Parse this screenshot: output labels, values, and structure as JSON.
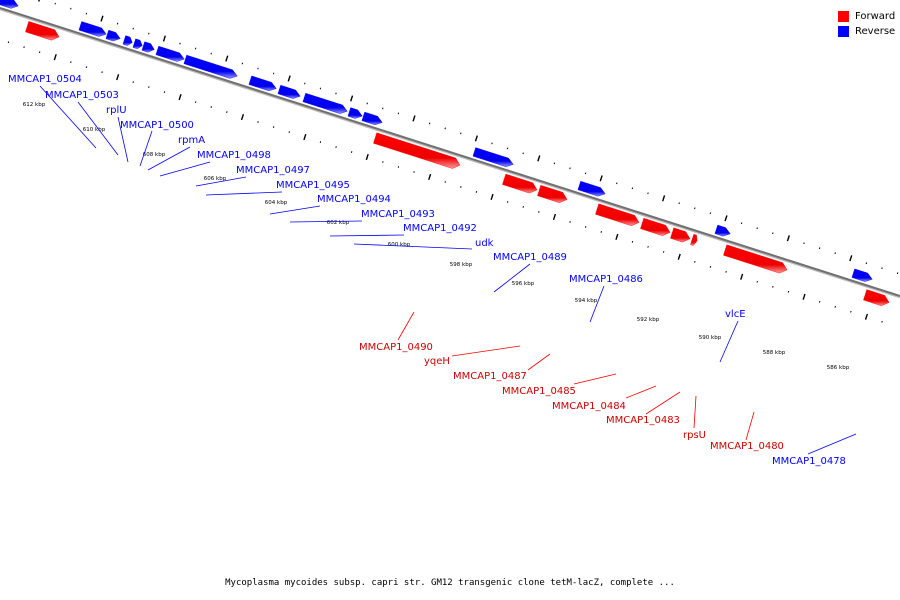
{
  "legend": {
    "forward_label": "Forward",
    "reverse_label": "Reverse",
    "forward_color": "#ff0000",
    "reverse_color": "#0000ff"
  },
  "caption": "Mycoplasma mycoides subsp. capri str. GM12 transgenic clone tetM-lacZ, complete ...",
  "scale_labels": [
    "612 kbp",
    "610 kbp",
    "608 kbp",
    "606 kbp",
    "604 kbp",
    "602 kbp",
    "600 kbp",
    "598 kbp",
    "596 kbp",
    "594 kbp",
    "592 kbp",
    "590 kbp",
    "588 kbp",
    "586 kbp"
  ],
  "reverse_genes": [
    "MMCAP1_0504",
    "MMCAP1_0503",
    "rplU",
    "MMCAP1_0500",
    "rpmA",
    "MMCAP1_0498",
    "MMCAP1_0497",
    "MMCAP1_0495",
    "MMCAP1_0494",
    "MMCAP1_0493",
    "MMCAP1_0492",
    "udk",
    "MMCAP1_0489",
    "MMCAP1_0486",
    "vlcE",
    "MMCAP1_0478"
  ],
  "forward_genes": [
    "MMCAP1_0490",
    "yqeH",
    "MMCAP1_0487",
    "MMCAP1_0485",
    "MMCAP1_0484",
    "MMCAP1_0483",
    "rpsU",
    "MMCAP1_0480"
  ]
}
